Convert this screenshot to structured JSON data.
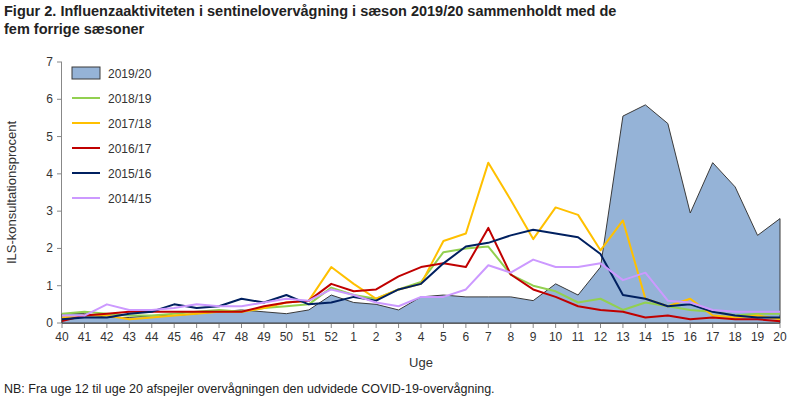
{
  "chart_data": {
    "type": "line",
    "title": "Figur 2. Influenzaaktiviteten i sentinelovervågning i sæson 2019/20 sammenholdt med de fem forrige sæsoner",
    "x_label": "Uge",
    "y_label": "ILS-konsultationsprocent",
    "note": "NB: Fra uge 12 til uge 20 afspejler overvågningen den udvidede COVID-19-overvågning.",
    "categories": [
      40,
      41,
      42,
      43,
      44,
      45,
      46,
      47,
      48,
      49,
      50,
      51,
      52,
      1,
      2,
      3,
      4,
      5,
      6,
      7,
      8,
      9,
      10,
      11,
      12,
      13,
      14,
      15,
      16,
      17,
      18,
      19,
      20
    ],
    "ylim": [
      0,
      7
    ],
    "yticks": [
      0,
      1,
      2,
      3,
      4,
      5,
      6,
      7
    ],
    "grid": false,
    "legend": "upper left",
    "series": [
      {
        "name": "2019/20",
        "type": "area",
        "color": "#95b3d7",
        "values": [
          0.25,
          0.25,
          0.15,
          0.15,
          0.2,
          0.2,
          0.25,
          0.3,
          0.35,
          0.3,
          0.25,
          0.35,
          0.75,
          0.55,
          0.5,
          0.35,
          0.7,
          0.75,
          0.7,
          0.7,
          0.7,
          0.6,
          1.05,
          0.75,
          1.5,
          5.55,
          5.85,
          5.35,
          2.95,
          4.3,
          3.65,
          2.35,
          2.8
        ]
      },
      {
        "name": "2018/19",
        "type": "line",
        "color": "#92d050",
        "values": [
          0.25,
          0.3,
          0.25,
          0.2,
          0.2,
          0.25,
          0.3,
          0.35,
          0.3,
          0.4,
          0.45,
          0.5,
          0.95,
          0.75,
          0.65,
          0.9,
          1.1,
          1.9,
          2.0,
          2.05,
          1.3,
          1.0,
          0.85,
          0.55,
          0.65,
          0.35,
          0.55,
          0.45,
          0.35,
          0.3,
          0.2,
          0.25,
          0.25
        ]
      },
      {
        "name": "2017/18",
        "type": "line",
        "color": "#ffc000",
        "values": [
          0.15,
          0.2,
          0.2,
          0.1,
          0.15,
          0.2,
          0.25,
          0.3,
          0.3,
          0.4,
          0.55,
          0.6,
          1.5,
          1.05,
          0.65,
          0.9,
          1.05,
          2.2,
          2.4,
          4.3,
          3.3,
          2.25,
          3.1,
          2.9,
          1.95,
          2.75,
          0.65,
          0.45,
          0.65,
          0.2,
          0.15,
          0.2,
          0.1
        ]
      },
      {
        "name": "2016/17",
        "type": "line",
        "color": "#c00000",
        "values": [
          0.05,
          0.2,
          0.25,
          0.3,
          0.3,
          0.3,
          0.3,
          0.3,
          0.3,
          0.45,
          0.55,
          0.6,
          1.05,
          0.85,
          0.9,
          1.25,
          1.5,
          1.6,
          1.5,
          2.55,
          1.3,
          0.9,
          0.7,
          0.45,
          0.35,
          0.3,
          0.15,
          0.2,
          0.1,
          0.15,
          0.1,
          0.1,
          0.05
        ]
      },
      {
        "name": "2015/16",
        "type": "line",
        "color": "#002060",
        "values": [
          0.1,
          0.15,
          0.15,
          0.25,
          0.3,
          0.5,
          0.4,
          0.45,
          0.65,
          0.55,
          0.75,
          0.5,
          0.55,
          0.7,
          0.6,
          0.9,
          1.05,
          1.6,
          2.05,
          2.15,
          2.35,
          2.5,
          2.4,
          2.3,
          1.85,
          0.75,
          0.65,
          0.45,
          0.5,
          0.3,
          0.2,
          0.15,
          0.15
        ]
      },
      {
        "name": "2014/15",
        "type": "line",
        "color": "#cc99ff",
        "values": [
          0.2,
          0.2,
          0.5,
          0.35,
          0.35,
          0.4,
          0.5,
          0.45,
          0.45,
          0.55,
          0.65,
          0.6,
          0.9,
          0.75,
          0.55,
          0.45,
          0.7,
          0.7,
          0.9,
          1.55,
          1.35,
          1.7,
          1.5,
          1.5,
          1.6,
          1.15,
          1.35,
          0.6,
          0.55,
          0.35,
          0.3,
          0.3,
          0.3
        ]
      }
    ]
  }
}
